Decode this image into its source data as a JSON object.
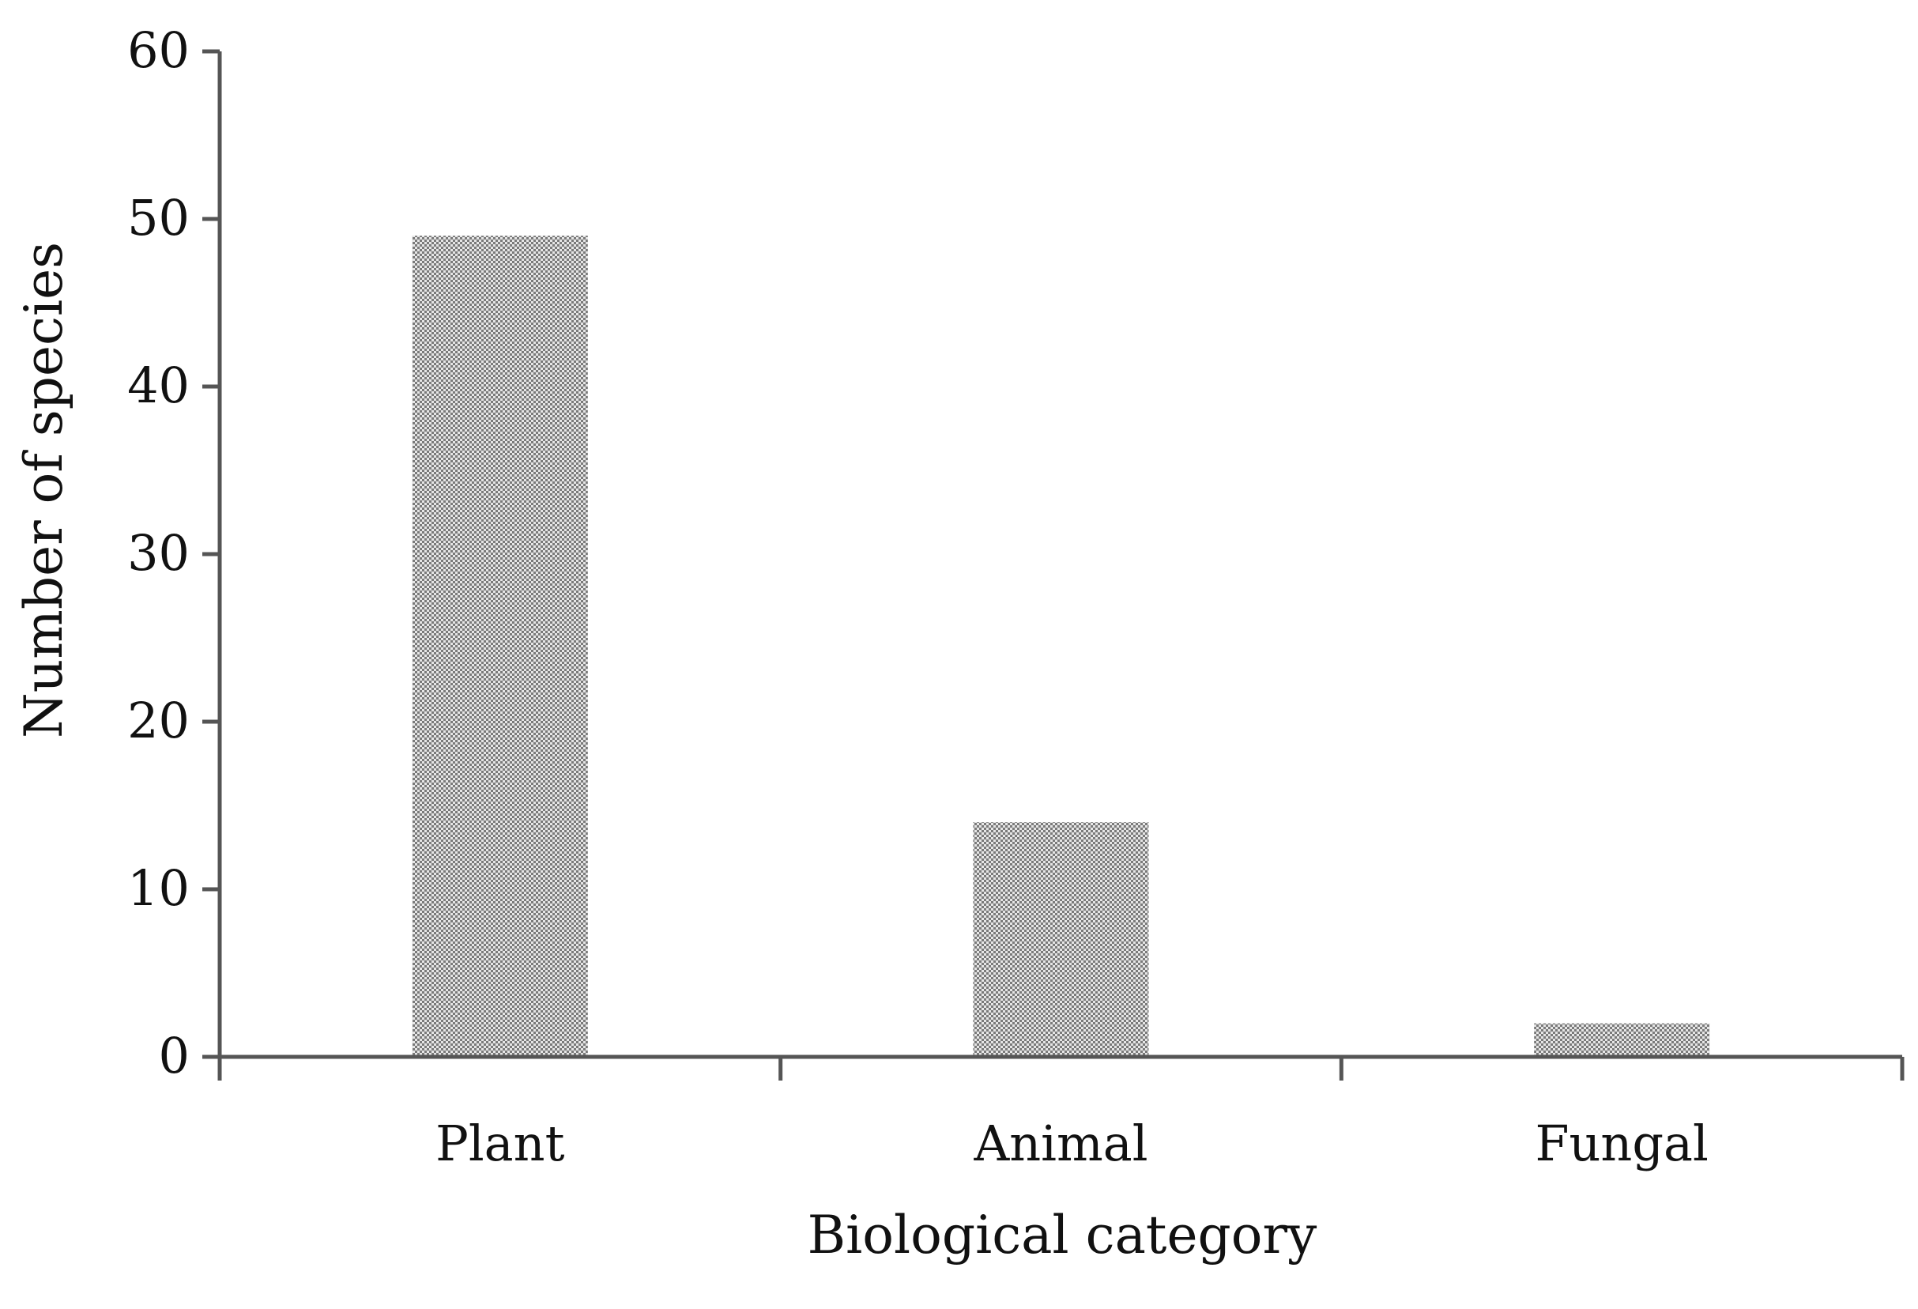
{
  "chart_data": {
    "type": "bar",
    "categories": [
      "Plant",
      "Animal",
      "Fungal"
    ],
    "values": [
      49,
      14,
      2
    ],
    "xlabel": "Biological category",
    "ylabel": "Number of species",
    "ylim": [
      0,
      60
    ],
    "yticks": [
      0,
      10,
      20,
      30,
      40,
      50,
      60
    ],
    "ytick_labels": [
      "0",
      "10",
      "20",
      "30",
      "40",
      "50",
      "60"
    ],
    "grid": false,
    "legend": "none",
    "bar_pattern": "fine checkered gray",
    "colors": {
      "axis": "#555555",
      "bar_dark": "#7a7a7a",
      "bar_light": "#e6e6e6",
      "text": "#111111"
    }
  }
}
